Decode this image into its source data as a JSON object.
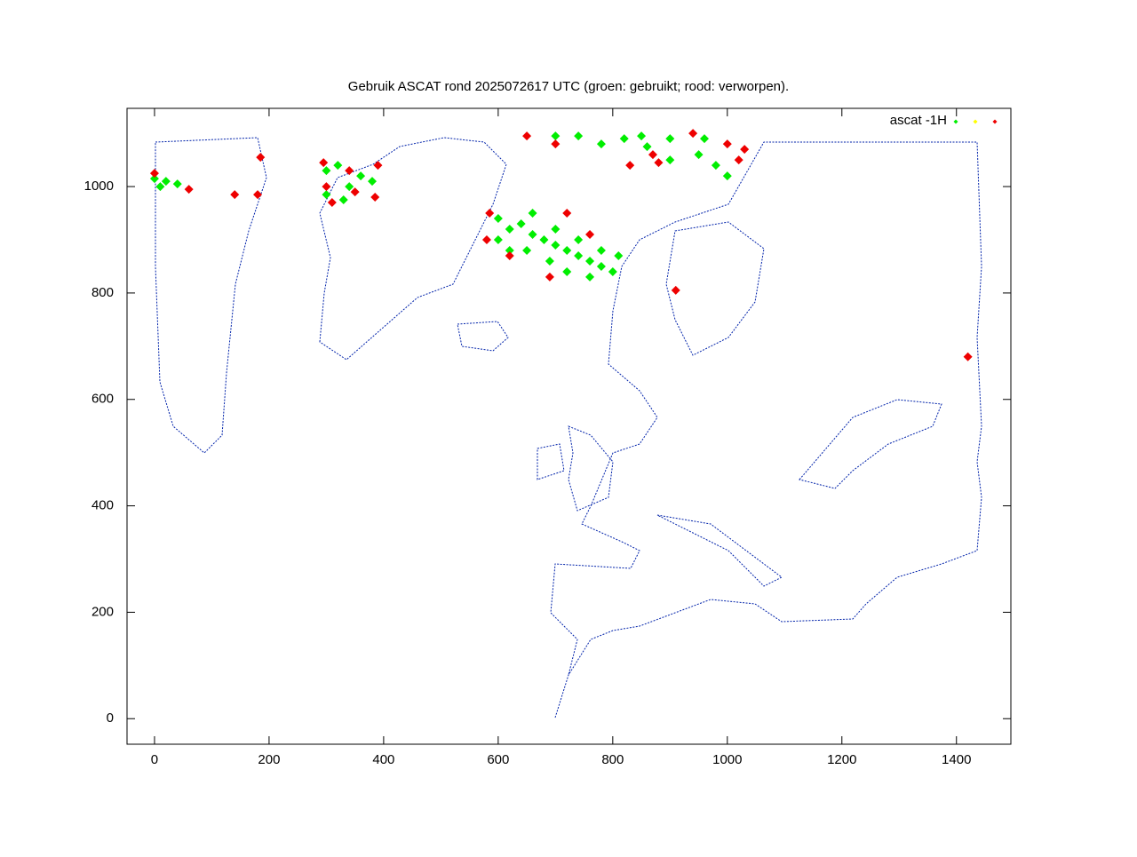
{
  "chart_data": {
    "type": "scatter",
    "title": "Gebruik ASCAT rond 2025072617 UTC (groen: gebruikt; rood: verworpen).",
    "xlim": [
      -48,
      1495
    ],
    "ylim": [
      -48,
      1147
    ],
    "xticks": [
      0,
      200,
      400,
      600,
      800,
      1000,
      1200,
      1400
    ],
    "yticks": [
      0,
      200,
      400,
      600,
      800,
      1000
    ],
    "legend": "top-right",
    "series": [
      {
        "name": "ascat -1H",
        "color": "#00ee00",
        "x": [
          0,
          20,
          40,
          10,
          300,
          320,
          340,
          360,
          380,
          330,
          300,
          600,
          620,
          640,
          660,
          680,
          700,
          720,
          740,
          760,
          780,
          800,
          620,
          650,
          690,
          720,
          760,
          600,
          660,
          700,
          740,
          780,
          810,
          740,
          780,
          820,
          860,
          900,
          950,
          980,
          1000,
          900,
          850,
          700,
          960
        ],
        "y": [
          1015,
          1010,
          1005,
          1000,
          1030,
          1040,
          1000,
          1020,
          1010,
          975,
          985,
          940,
          920,
          930,
          910,
          900,
          890,
          880,
          870,
          860,
          850,
          840,
          880,
          880,
          860,
          840,
          830,
          900,
          950,
          920,
          900,
          880,
          870,
          1095,
          1080,
          1090,
          1075,
          1090,
          1060,
          1040,
          1020,
          1050,
          1095,
          1095,
          1090
        ]
      },
      {
        "color": "#ffff00",
        "x": [],
        "y": []
      },
      {
        "color": "#ee0000",
        "x": [
          0,
          60,
          140,
          180,
          185,
          300,
          310,
          295,
          350,
          390,
          385,
          340,
          580,
          585,
          620,
          690,
          760,
          720,
          650,
          700,
          830,
          870,
          940,
          1000,
          1030,
          1020,
          910,
          1420,
          880
        ],
        "y": [
          1025,
          995,
          985,
          985,
          1055,
          1000,
          970,
          1045,
          990,
          1040,
          980,
          1030,
          900,
          950,
          870,
          830,
          910,
          950,
          1095,
          1080,
          1040,
          1060,
          1100,
          1080,
          1070,
          1050,
          805,
          680,
          1045
        ]
      }
    ]
  }
}
